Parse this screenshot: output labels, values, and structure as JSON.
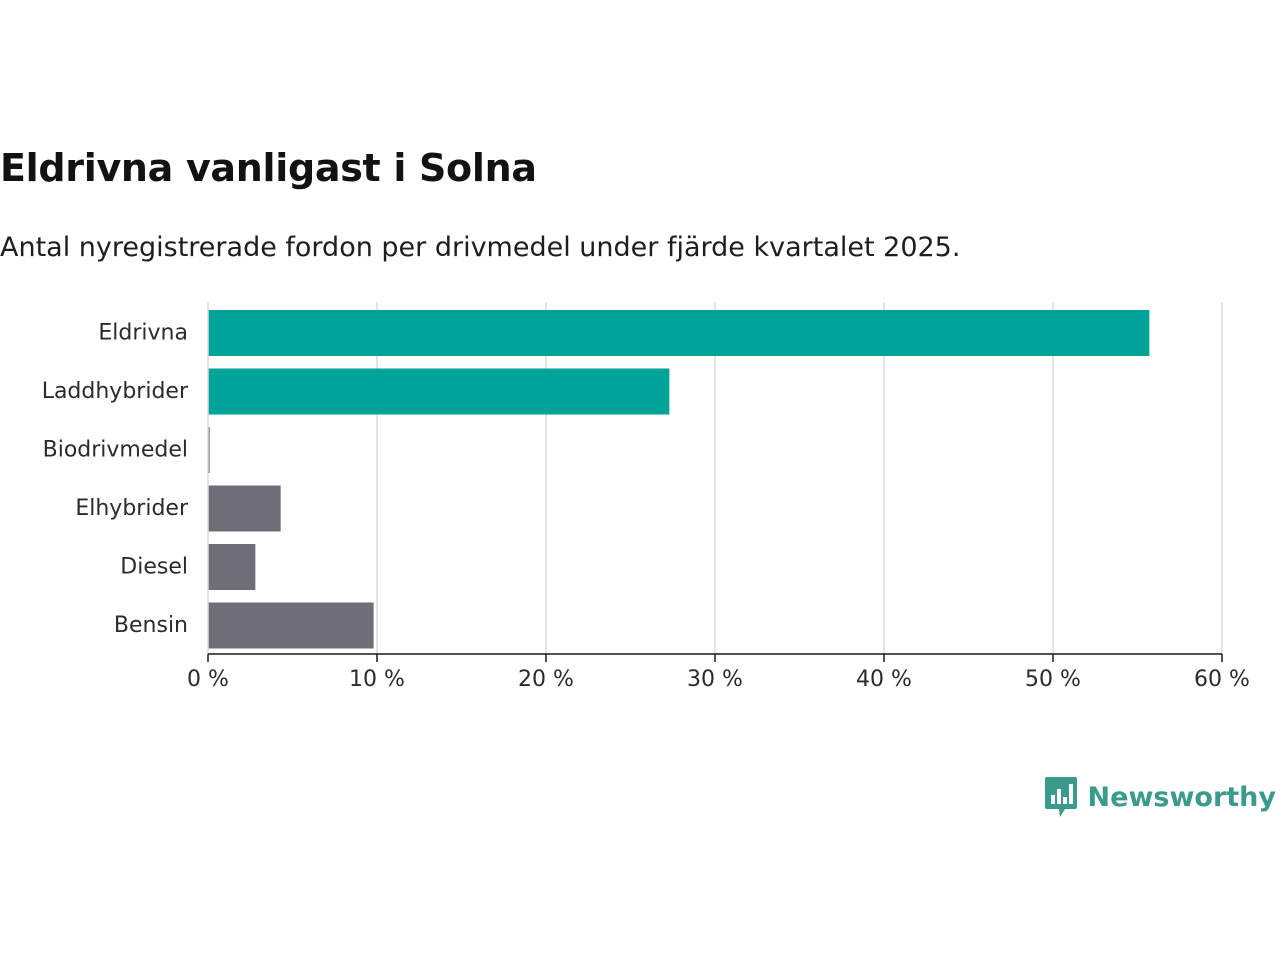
{
  "header": {
    "title": "Eldrivna vanligast i Solna",
    "subtitle": "Antal nyregistrerade fordon per drivmedel under fjärde kvartalet 2025."
  },
  "brand": {
    "name": "Newsworthy",
    "color": "#3a9a8c",
    "icon": "bar-chart-speech-bubble-icon"
  },
  "colors": {
    "highlight": "#00a398",
    "neutral": "#6f6e78",
    "grid": "#dcdcdc",
    "axis": "#1a1a1a"
  },
  "chart_data": {
    "type": "bar",
    "orientation": "horizontal",
    "title": "Eldrivna vanligast i Solna",
    "subtitle": "Antal nyregistrerade fordon per drivmedel under fjärde kvartalet 2025.",
    "xlabel": "",
    "ylabel": "",
    "unit": "%",
    "xlim": [
      0,
      60
    ],
    "ticks": [
      0,
      10,
      20,
      30,
      40,
      50,
      60
    ],
    "tick_labels": [
      "0 %",
      "10 %",
      "20 %",
      "30 %",
      "40 %",
      "50 %",
      "60 %"
    ],
    "grid": true,
    "legend": "none",
    "categories": [
      "Eldrivna",
      "Laddhybrider",
      "Biodrivmedel",
      "Elhybrider",
      "Diesel",
      "Bensin"
    ],
    "values": [
      55.7,
      27.3,
      0.1,
      4.3,
      2.8,
      9.8
    ],
    "bar_colors": [
      "#00a398",
      "#00a398",
      "#6f6e78",
      "#6f6e78",
      "#6f6e78",
      "#6f6e78"
    ]
  }
}
